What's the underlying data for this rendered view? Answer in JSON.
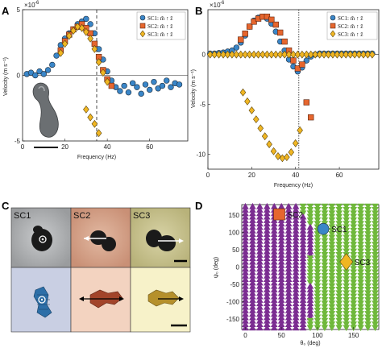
{
  "panels": {
    "A": {
      "label": "A"
    },
    "B": {
      "label": "B"
    },
    "C": {
      "label": "C",
      "tiles": [
        "SC1",
        "SC2",
        "SC3"
      ]
    },
    "D": {
      "label": "D"
    }
  },
  "chart_data": [
    {
      "type": "scatter",
      "panel": "A",
      "title": "",
      "xlabel": "Frequency (Hz)",
      "ylabel": "Velocity (m s⁻¹)",
      "y_multiplier": "×10",
      "y_multiplier_exp": "-6",
      "xlim": [
        0,
        78
      ],
      "ylim": [
        -5,
        5
      ],
      "xticks": [
        0,
        20,
        40,
        60
      ],
      "yticks": [
        -5,
        0,
        5
      ],
      "vline_x": 35,
      "legend_position": "top-right",
      "series": [
        {
          "name": "SC1: m̂ ↑ ẑ",
          "marker": "circle",
          "color": "#3a86c8",
          "x": [
            2,
            4,
            6,
            8,
            10,
            12,
            14,
            16,
            18,
            20,
            22,
            24,
            26,
            28,
            30,
            32,
            34,
            36,
            38,
            40,
            42,
            44,
            46,
            48,
            50,
            52,
            54,
            56,
            58,
            60,
            62,
            64,
            66,
            68,
            70,
            72,
            74
          ],
          "y": [
            0.1,
            0.2,
            0.0,
            0.3,
            0.1,
            0.4,
            0.8,
            1.5,
            2.3,
            2.8,
            3.2,
            3.5,
            3.9,
            4.1,
            4.3,
            3.9,
            3.2,
            2.0,
            1.2,
            0.3,
            -0.4,
            -0.9,
            -1.2,
            -0.8,
            -1.3,
            -0.6,
            -0.9,
            -1.4,
            -0.7,
            -1.1,
            -0.5,
            -1.0,
            -0.8,
            -0.4,
            -0.9,
            -0.6,
            -0.7
          ]
        },
        {
          "name": "SC2: m̂ ↑ ẑ",
          "marker": "square",
          "color": "#e6662e",
          "x": [
            18,
            20,
            22,
            24,
            26,
            28,
            30,
            32,
            34,
            36,
            38,
            40,
            42
          ],
          "y": [
            1.9,
            2.6,
            3.1,
            3.5,
            3.7,
            3.9,
            3.6,
            3.2,
            2.4,
            1.4,
            0.4,
            -0.3,
            -0.8
          ]
        },
        {
          "name": "SC3: m̂ ↑ ẑ",
          "marker": "diamond",
          "color": "#f0b623",
          "x": [
            18,
            20,
            22,
            24,
            26,
            28,
            30,
            32,
            34,
            36,
            38,
            40,
            30,
            32,
            34,
            36
          ],
          "y": [
            1.7,
            2.4,
            3.0,
            3.4,
            3.7,
            3.6,
            3.3,
            2.8,
            2.0,
            1.0,
            0.2,
            -0.5,
            -2.6,
            -3.2,
            -3.7,
            -4.4
          ]
        }
      ]
    },
    {
      "type": "scatter",
      "panel": "B",
      "title": "",
      "xlabel": "Frequency (Hz)",
      "ylabel": "Velocity (m s⁻¹)",
      "y_multiplier": "×10",
      "y_multiplier_exp": "-6",
      "xlim": [
        0,
        78
      ],
      "ylim": [
        -11.5,
        4.5
      ],
      "xticks": [
        0,
        20,
        40,
        60
      ],
      "yticks": [
        -10,
        -5,
        0
      ],
      "vline_x": 41.5,
      "legend_position": "top-right",
      "series": [
        {
          "name": "SC1: m̂ ↑ ẑ",
          "marker": "circle",
          "color": "#3a86c8",
          "x": [
            1,
            3,
            5,
            7,
            9,
            11,
            13,
            15,
            17,
            19,
            21,
            23,
            25,
            27,
            29,
            31,
            33,
            35,
            37,
            39,
            41,
            43,
            45,
            47,
            49,
            51,
            53,
            55,
            57,
            59,
            61,
            63,
            65,
            67,
            69,
            71,
            73,
            75
          ],
          "y": [
            0.1,
            0.1,
            0.15,
            0.2,
            0.3,
            0.4,
            0.7,
            1.2,
            1.9,
            2.8,
            3.4,
            3.7,
            3.8,
            3.6,
            3.1,
            2.3,
            1.3,
            0.4,
            -0.5,
            -1.2,
            -1.7,
            -1.3,
            -0.6,
            -0.2,
            0.0,
            0.1,
            0.1,
            0.1,
            0.1,
            0.1,
            0.1,
            0.1,
            0.1,
            0.1,
            0.1,
            0.1,
            0.1,
            0.1
          ]
        },
        {
          "name": "SC2: m̂ ↑ ẑ",
          "marker": "square",
          "color": "#e6662e",
          "x": [
            15,
            17,
            19,
            21,
            23,
            25,
            27,
            29,
            31,
            33,
            35,
            37,
            39,
            41,
            43,
            45,
            47
          ],
          "y": [
            1.5,
            2.1,
            2.8,
            3.3,
            3.6,
            3.8,
            3.8,
            3.5,
            3.0,
            2.2,
            1.3,
            0.4,
            -0.6,
            -1.4,
            -1.0,
            -4.8,
            -6.3
          ]
        },
        {
          "name": "SC3: m̂ ↑ ẑ",
          "marker": "diamond",
          "color": "#f0b623",
          "x": [
            1,
            3,
            5,
            7,
            9,
            11,
            13,
            15,
            17,
            19,
            21,
            23,
            25,
            27,
            29,
            31,
            33,
            35,
            37,
            39,
            41,
            43,
            45,
            47,
            49,
            51,
            53,
            55,
            57,
            59,
            61,
            63,
            65,
            67,
            69,
            71,
            73,
            75,
            16,
            18,
            20,
            22,
            24,
            26,
            28,
            30,
            32,
            34,
            36,
            38,
            40,
            42
          ],
          "y": [
            0,
            0,
            0,
            0,
            0,
            0,
            0,
            0,
            0,
            0,
            0,
            0,
            0,
            0,
            0,
            0,
            0,
            0,
            0,
            0,
            0,
            0,
            0,
            0,
            0,
            0,
            0,
            0,
            0,
            0,
            0,
            0,
            0,
            0,
            0,
            0,
            0,
            0,
            -3.8,
            -4.7,
            -5.6,
            -6.5,
            -7.4,
            -8.2,
            -9.0,
            -9.7,
            -10.2,
            -10.4,
            -10.3,
            -9.8,
            -8.9,
            -7.6
          ]
        }
      ]
    },
    {
      "type": "scatter",
      "panel": "D",
      "title": "",
      "xlabel": "θ₀ (deg)",
      "ylabel": "ψ₀ (deg)",
      "xlim": [
        -5,
        185
      ],
      "ylim": [
        -180,
        180
      ],
      "xticks": [
        0,
        50,
        100,
        150
      ],
      "yticks": [
        -150,
        -100,
        -50,
        0,
        50,
        100,
        150
      ],
      "regions": [
        {
          "name": "purple",
          "color": "#7b2d91",
          "marker": "triangle-up",
          "rule": "theta below boundary"
        },
        {
          "name": "green",
          "color": "#6fb83b",
          "marker": "triangle-down",
          "rule": "theta above boundary"
        }
      ],
      "boundary_theta_by_psi": [
        {
          "psi": 170,
          "theta": 72
        },
        {
          "psi": 130,
          "theta": 88
        },
        {
          "psi": 90,
          "theta": 95
        },
        {
          "psi": 50,
          "theta": 92
        },
        {
          "psi": 10,
          "theta": 88
        },
        {
          "psi": -30,
          "theta": 86
        },
        {
          "psi": -70,
          "theta": 94
        },
        {
          "psi": -110,
          "theta": 100
        },
        {
          "psi": -150,
          "theta": 90
        },
        {
          "psi": -170,
          "theta": 82
        }
      ],
      "annotations": [
        {
          "text": "SC2",
          "marker": "square",
          "color": "#e6662e",
          "theta": 47,
          "psi": 152
        },
        {
          "text": "SC1",
          "marker": "circle",
          "color": "#3a86c8",
          "theta": 108,
          "psi": 110
        },
        {
          "text": "SC3",
          "marker": "diamond",
          "color": "#f0b623",
          "theta": 140,
          "psi": 15
        }
      ]
    }
  ]
}
